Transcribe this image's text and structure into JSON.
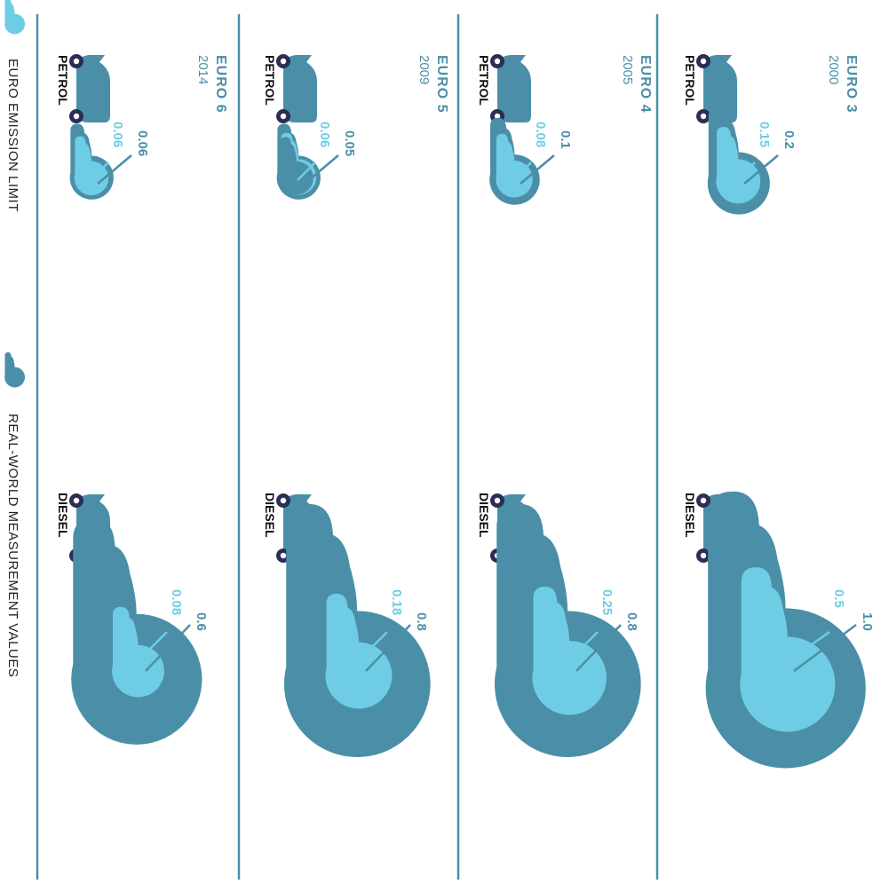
{
  "colors": {
    "limit": "#6ecde4",
    "real": "#4a8fa7",
    "wheel": "#2b2d54",
    "divider": "#4a8fa7",
    "background": "#ffffff"
  },
  "legend": {
    "limit_label": "EURO EMISSION LIMIT",
    "real_label": "REAL-WORLD MEASUREMENT VALUES"
  },
  "chart_data": {
    "type": "bubble",
    "orientation": "rotated-90-clockwise",
    "categories": [
      "PETROL",
      "DIESEL"
    ],
    "series": [
      {
        "name": "EURO EMISSION LIMIT",
        "role": "limit"
      },
      {
        "name": "REAL-WORLD MEASUREMENT VALUES",
        "role": "real"
      }
    ],
    "standards": [
      {
        "name": "EURO 3",
        "year": "2000",
        "petrol": {
          "limit": 0.15,
          "real": 0.2,
          "limit_label": "0.15",
          "real_label": "0.2"
        },
        "diesel": {
          "limit": 0.5,
          "real": 1.0,
          "limit_label": "0.5",
          "real_label": "1.0"
        }
      },
      {
        "name": "EURO 4",
        "year": "2005",
        "petrol": {
          "limit": 0.08,
          "real": 0.1,
          "limit_label": "0.08",
          "real_label": "0.1"
        },
        "diesel": {
          "limit": 0.25,
          "real": 0.8,
          "limit_label": "0.25",
          "real_label": "0.8"
        }
      },
      {
        "name": "EURO 5",
        "year": "2009",
        "petrol": {
          "limit": 0.06,
          "real": 0.05,
          "limit_label": "0.06",
          "real_label": "0.05"
        },
        "diesel": {
          "limit": 0.18,
          "real": 0.8,
          "limit_label": "0.18",
          "real_label": "0.8"
        }
      },
      {
        "name": "EURO 6",
        "year": "2014",
        "petrol": {
          "limit": 0.06,
          "real": 0.06,
          "limit_label": "0.06",
          "real_label": "0.06"
        },
        "diesel": {
          "limit": 0.08,
          "real": 0.6,
          "limit_label": "0.08",
          "real_label": "0.6"
        }
      }
    ]
  }
}
